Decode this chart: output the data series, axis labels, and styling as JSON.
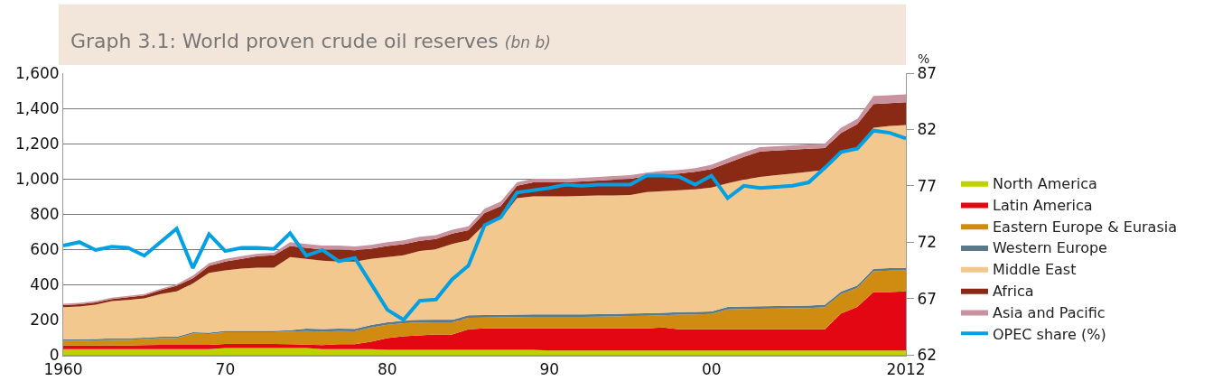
{
  "chart_data": {
    "type": "area",
    "stacked": true,
    "title": "Graph 3.1: World proven crude oil reserves",
    "subtitle": "(bn b)",
    "y2label": "%",
    "x": [
      1960,
      1961,
      1962,
      1963,
      1964,
      1965,
      1966,
      1967,
      1968,
      1969,
      1970,
      1971,
      1972,
      1973,
      1974,
      1975,
      1976,
      1977,
      1978,
      1979,
      1980,
      1981,
      1982,
      1983,
      1984,
      1985,
      1986,
      1987,
      1988,
      1989,
      1990,
      1991,
      1992,
      1993,
      1994,
      1995,
      1996,
      1997,
      1998,
      1999,
      2000,
      2001,
      2002,
      2003,
      2004,
      2005,
      2006,
      2007,
      2008,
      2009,
      2010,
      2011,
      2012
    ],
    "series": [
      {
        "name": "North America",
        "color": "#bfd200",
        "values": [
          32,
          32,
          32,
          32,
          32,
          32,
          32,
          32,
          32,
          32,
          38,
          38,
          38,
          38,
          38,
          38,
          32,
          32,
          32,
          32,
          28,
          28,
          28,
          28,
          28,
          28,
          28,
          28,
          28,
          28,
          24,
          24,
          24,
          24,
          24,
          24,
          24,
          24,
          24,
          24,
          24,
          24,
          24,
          24,
          24,
          24,
          24,
          24,
          24,
          24,
          24,
          24,
          24
        ]
      },
      {
        "name": "Latin America",
        "color": "#e30613",
        "values": [
          20,
          20,
          20,
          20,
          20,
          23,
          24,
          24,
          24,
          24,
          24,
          24,
          24,
          24,
          22,
          20,
          23,
          28,
          28,
          43,
          67,
          77,
          82,
          87,
          87,
          117,
          122,
          122,
          122,
          122,
          126,
          126,
          126,
          126,
          126,
          126,
          126,
          131,
          121,
          121,
          121,
          121,
          121,
          121,
          121,
          121,
          121,
          121,
          210,
          248,
          333,
          333,
          336
        ]
      },
      {
        "name": "Eastern Europe & Eurasia",
        "color": "#d08c10",
        "values": [
          28,
          28,
          30,
          33,
          33,
          35,
          39,
          39,
          64,
          62,
          66,
          66,
          66,
          66,
          72,
          77,
          77,
          75,
          73,
          80,
          75,
          75,
          73,
          70,
          70,
          65,
          62,
          63,
          64,
          65,
          65,
          65,
          66,
          67,
          68,
          70,
          72,
          70,
          83,
          85,
          87,
          113,
          115,
          117,
          118,
          119,
          121,
          125,
          111,
          108,
          118,
          121,
          120
        ]
      },
      {
        "name": "Western Europe",
        "color": "#5a7a8a",
        "values": [
          8,
          8,
          8,
          8,
          8,
          8,
          8,
          8,
          8,
          8,
          8,
          8,
          8,
          8,
          8,
          14,
          14,
          14,
          14,
          14,
          14,
          14,
          14,
          14,
          14,
          14,
          14,
          14,
          14,
          14,
          14,
          14,
          14,
          14,
          14,
          14,
          14,
          14,
          14,
          14,
          14,
          14,
          14,
          14,
          14,
          14,
          14,
          14,
          14,
          14,
          14,
          14,
          14
        ]
      },
      {
        "name": "Middle East",
        "color": "#f2c88e",
        "values": [
          182,
          187,
          195,
          212,
          219,
          222,
          242,
          257,
          277,
          339,
          344,
          354,
          359,
          359,
          415,
          396,
          389,
          381,
          383,
          376,
          371,
          371,
          393,
          401,
          431,
          426,
          514,
          543,
          662,
          671,
          671,
          671,
          672,
          674,
          673,
          674,
          689,
          691,
          693,
          696,
          704,
          703,
          721,
          734,
          743,
          752,
          760,
          766,
          781,
          786,
          801,
          808,
          811
        ]
      },
      {
        "name": "Africa",
        "color": "#8b2a14",
        "values": [
          12,
          12,
          12,
          12,
          15,
          17,
          22,
          32,
          30,
          40,
          50,
          55,
          65,
          70,
          63,
          63,
          63,
          68,
          63,
          58,
          63,
          63,
          58,
          58,
          58,
          58,
          65,
          75,
          70,
          80,
          80,
          80,
          83,
          85,
          90,
          92,
          90,
          95,
          95,
          100,
          105,
          115,
          130,
          145,
          140,
          135,
          130,
          125,
          120,
          130,
          135,
          130,
          130
        ]
      },
      {
        "name": "Asia and Pacific",
        "color": "#c9929f",
        "values": [
          8,
          8,
          8,
          8,
          8,
          8,
          8,
          8,
          15,
          15,
          15,
          15,
          15,
          15,
          22,
          22,
          22,
          22,
          22,
          22,
          22,
          22,
          22,
          22,
          22,
          22,
          25,
          25,
          20,
          20,
          20,
          20,
          20,
          20,
          20,
          20,
          20,
          20,
          20,
          20,
          25,
          25,
          25,
          25,
          25,
          25,
          25,
          25,
          30,
          30,
          45,
          45,
          45
        ]
      },
      {
        "name": "OPEC share (%)",
        "type": "line",
        "axis": "y2",
        "color": "#00a0e3",
        "values": [
          71.7,
          72.0,
          71.3,
          71.6,
          71.5,
          70.8,
          72.0,
          73.2,
          69.7,
          72.7,
          71.2,
          71.5,
          71.5,
          71.4,
          72.8,
          70.8,
          71.3,
          70.3,
          70.6,
          68.3,
          66.0,
          65.1,
          66.8,
          66.9,
          68.7,
          69.9,
          73.5,
          74.2,
          76.4,
          76.6,
          76.8,
          77.1,
          77.0,
          77.1,
          77.1,
          77.1,
          77.9,
          77.9,
          77.8,
          77.1,
          77.9,
          75.9,
          77.0,
          76.8,
          76.9,
          77.0,
          77.3,
          78.6,
          80.0,
          80.3,
          81.9,
          81.7,
          81.2
        ]
      }
    ],
    "xlim": [
      1960,
      2012
    ],
    "xticks": [
      {
        "value": 1960,
        "label": "1960"
      },
      {
        "value": 1970,
        "label": "70"
      },
      {
        "value": 1980,
        "label": "80"
      },
      {
        "value": 1990,
        "label": "90"
      },
      {
        "value": 2000,
        "label": "00"
      },
      {
        "value": 2012,
        "label": "2012"
      }
    ],
    "ylim": [
      0,
      1600
    ],
    "yticks": [
      0,
      200,
      400,
      600,
      800,
      {
        "value": 1000,
        "label": "1,000"
      },
      {
        "value": 1200,
        "label": "1,200"
      },
      {
        "value": 1400,
        "label": "1,400"
      },
      {
        "value": 1600,
        "label": "1,600"
      }
    ],
    "y2lim": [
      62,
      87
    ],
    "y2ticks": [
      62,
      67,
      72,
      77,
      82,
      87
    ],
    "grid": "y",
    "legend": "right",
    "line_style": "solid",
    "marker": "none"
  }
}
